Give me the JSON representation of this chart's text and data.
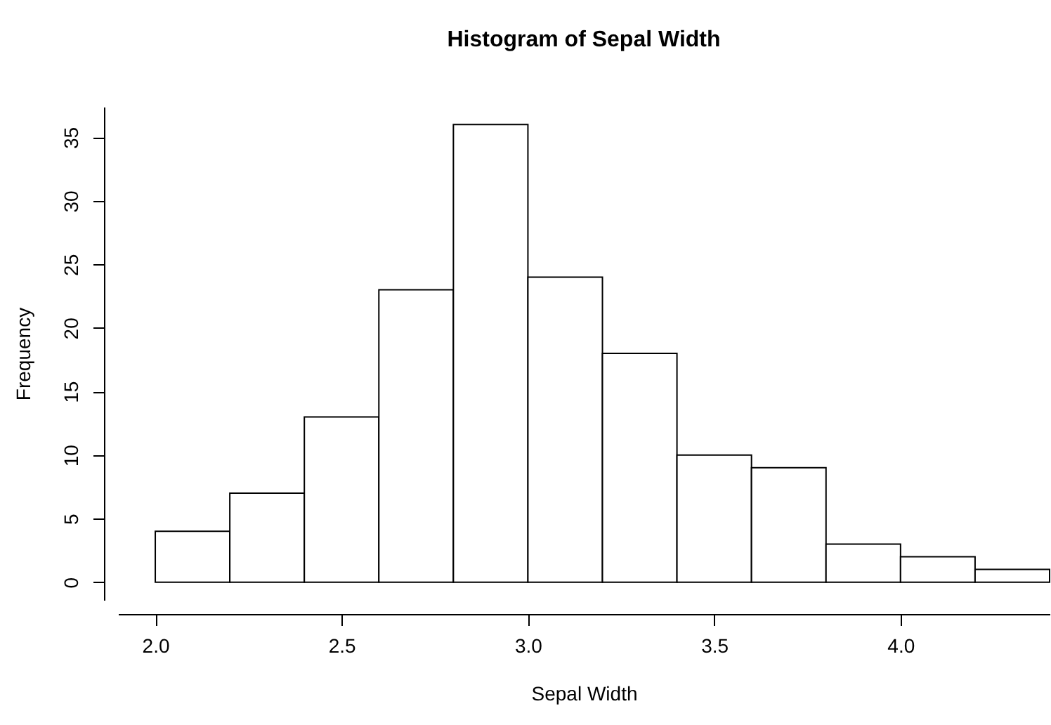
{
  "chart_data": {
    "type": "histogram",
    "title": "Histogram of Sepal Width",
    "xlabel": "Sepal Width",
    "ylabel": "Frequency",
    "bins": [
      2.0,
      2.2,
      2.4,
      2.6,
      2.8,
      3.0,
      3.2,
      3.4,
      3.6,
      3.8,
      4.0,
      4.2,
      4.4
    ],
    "values": [
      4,
      7,
      13,
      23,
      36,
      24,
      18,
      10,
      9,
      3,
      2,
      1
    ],
    "color": "#ffffff",
    "xlim": [
      1.9,
      4.4
    ],
    "xticks": [
      {
        "value": 2.0,
        "label": "2.0"
      },
      {
        "value": 2.5,
        "label": "2.5"
      },
      {
        "value": 3.0,
        "label": "3.0"
      },
      {
        "value": 3.5,
        "label": "3.5"
      },
      {
        "value": 4.0,
        "label": "4.0"
      }
    ],
    "ylim": [
      -1.4,
      37.4
    ],
    "yticks": [
      0,
      5,
      10,
      15,
      20,
      25,
      30,
      35
    ],
    "grid": false
  }
}
